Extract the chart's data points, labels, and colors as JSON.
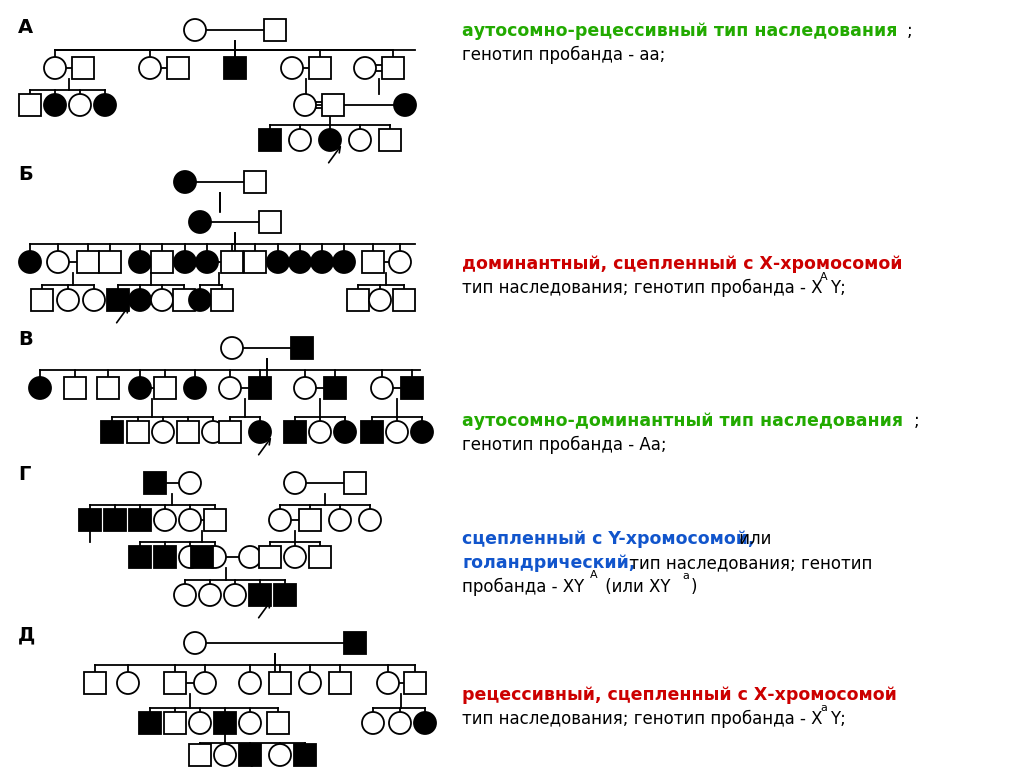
{
  "bg": "#ffffff",
  "green": "#22aa00",
  "red": "#cc0000",
  "blue": "#1155cc",
  "black": "#000000",
  "label_A": "А",
  "label_B": "Б",
  "label_V": "В",
  "label_G": "Г",
  "label_D": "Д"
}
